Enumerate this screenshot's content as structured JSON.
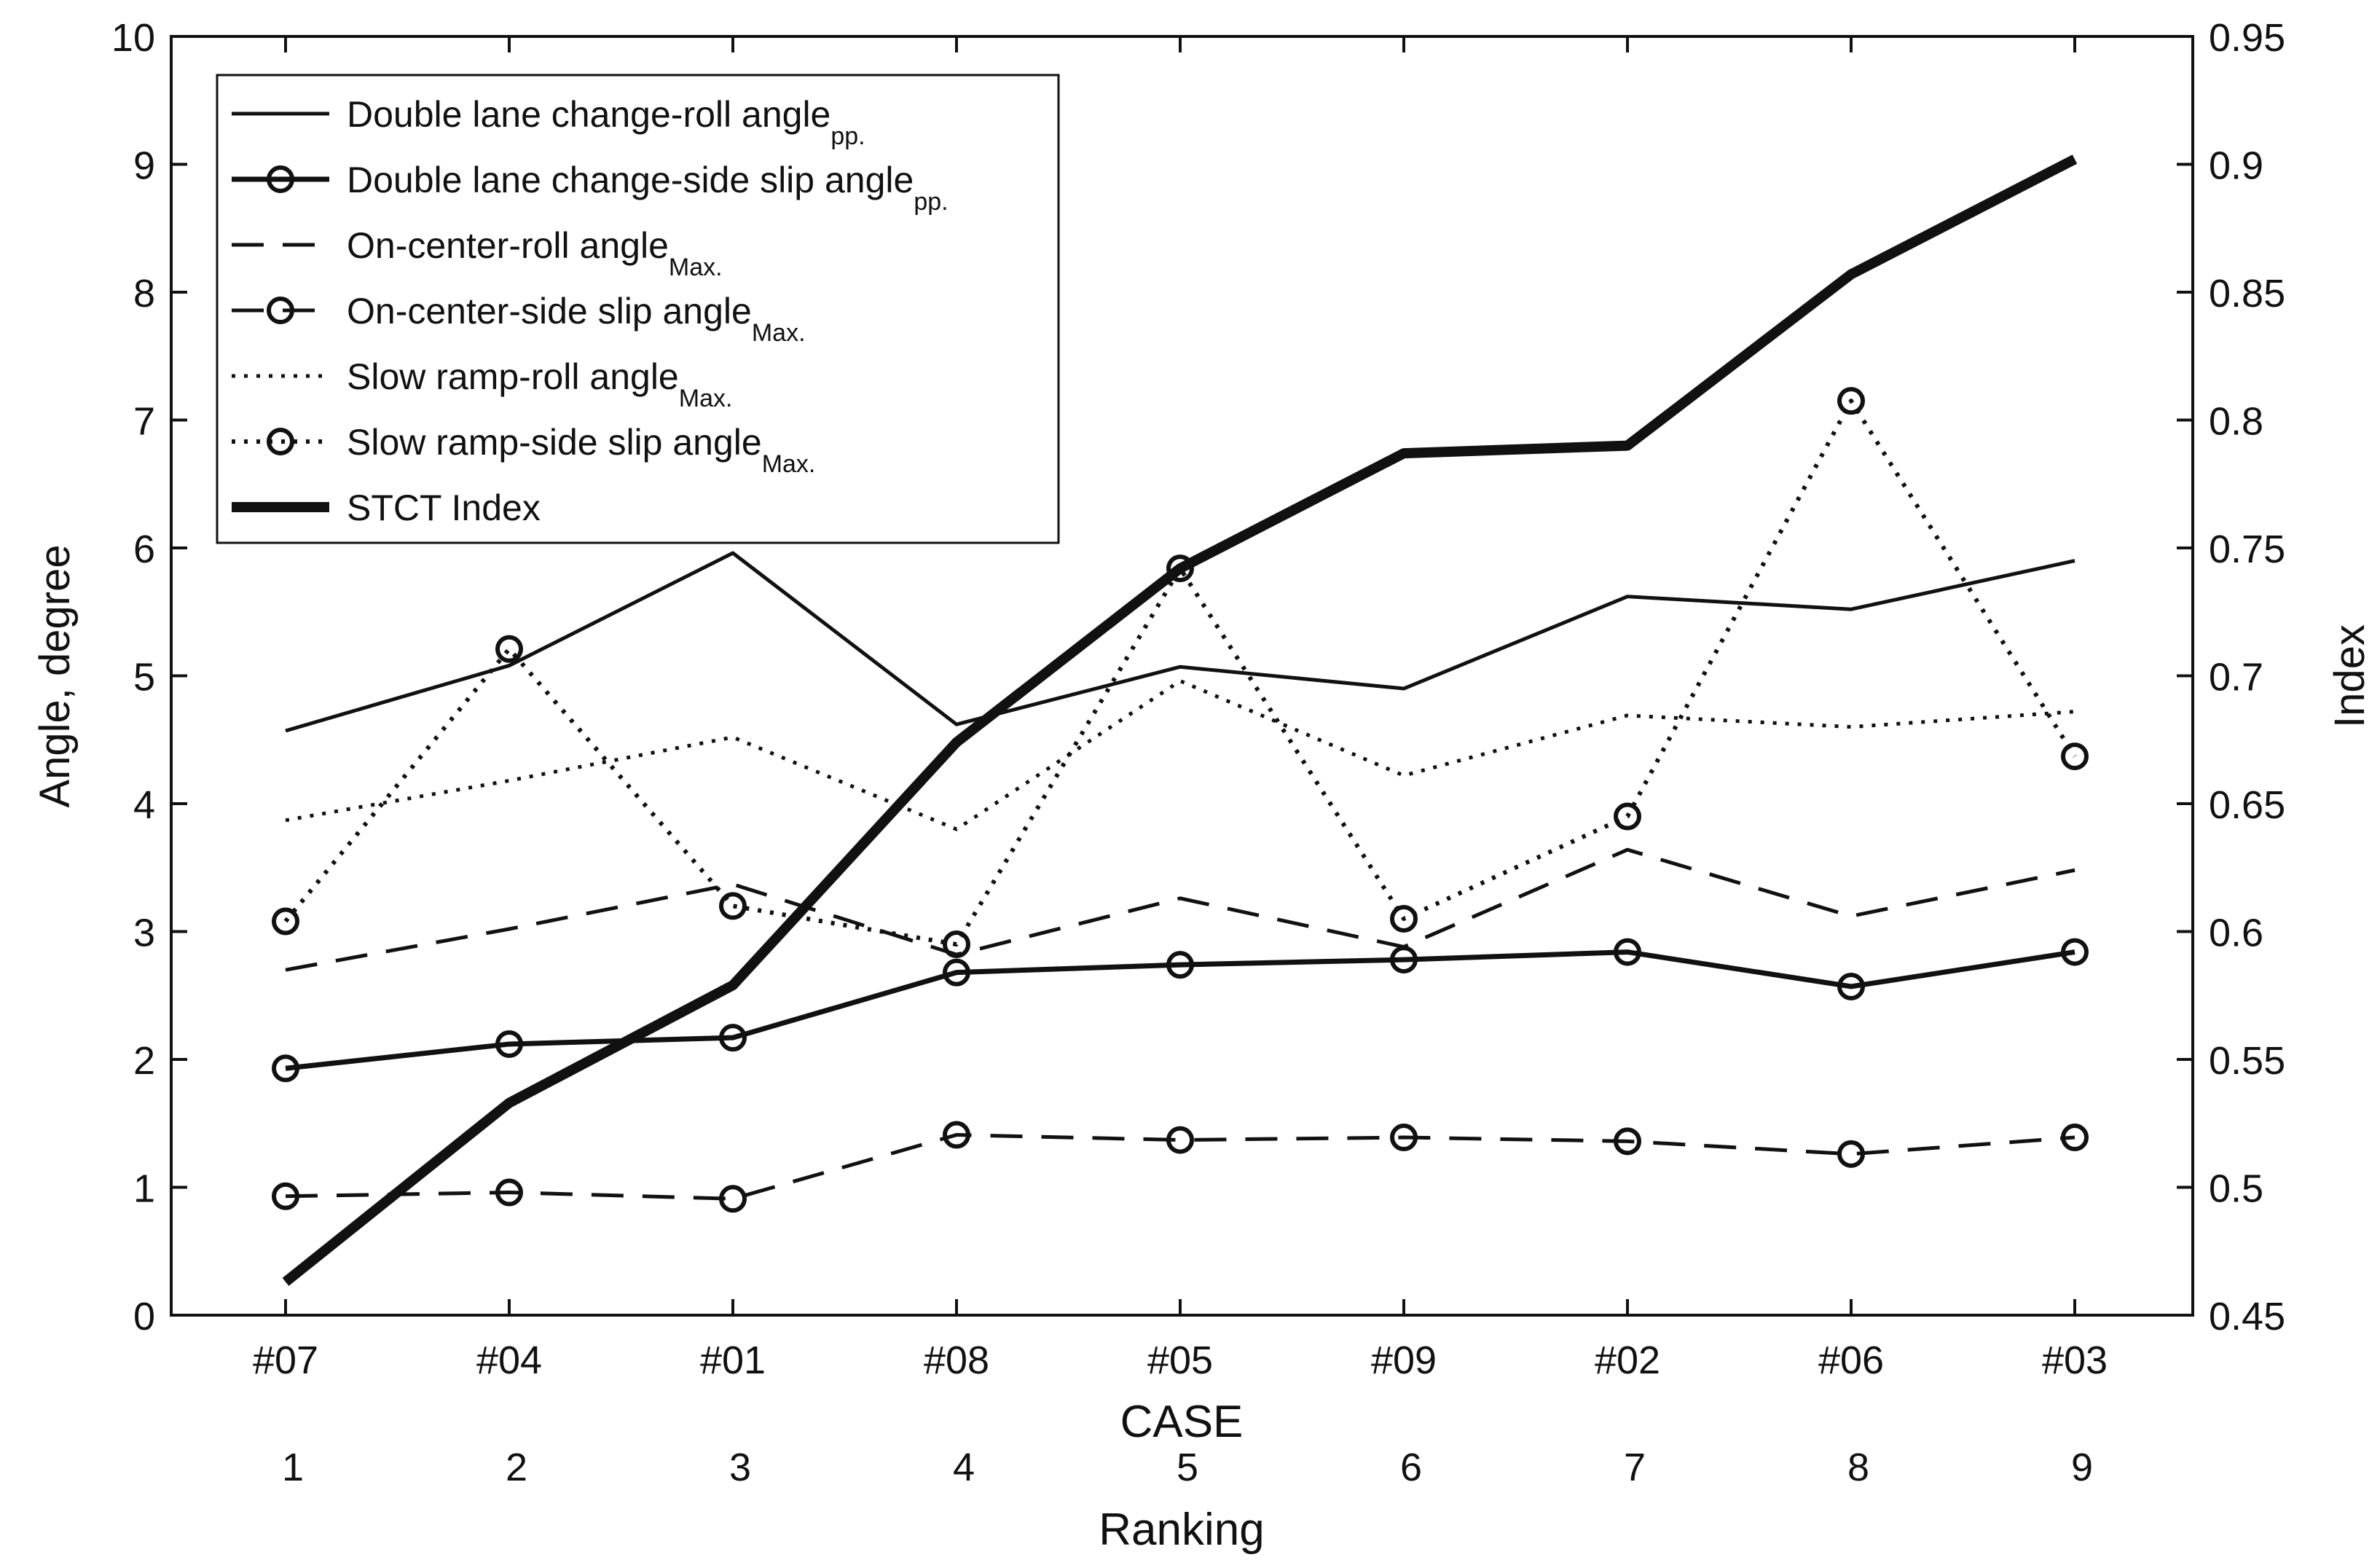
{
  "chart_data": {
    "type": "line",
    "categories": [
      "#07",
      "#04",
      "#01",
      "#08",
      "#05",
      "#09",
      "#02",
      "#06",
      "#03"
    ],
    "ranking": [
      "1",
      "2",
      "3",
      "4",
      "5",
      "6",
      "7",
      "8",
      "9"
    ],
    "xlabel": "CASE",
    "xlabel2": "Ranking",
    "ylabel": "Angle, degree",
    "ylabel_right": "Index",
    "ylim": [
      0,
      10
    ],
    "ylim_right": [
      0.45,
      0.95
    ],
    "yticks": [
      "0",
      "1",
      "2",
      "3",
      "4",
      "5",
      "6",
      "7",
      "8",
      "9",
      "10"
    ],
    "yticks_right": [
      "0.45",
      "0.5",
      "0.55",
      "0.6",
      "0.65",
      "0.7",
      "0.75",
      "0.8",
      "0.85",
      "0.9",
      "0.95"
    ],
    "legend_position": "top-left",
    "series": [
      {
        "name": "Double lane change-roll angle",
        "sub": "pp.",
        "style": "solid-thin",
        "axis": "left",
        "values": [
          4.57,
          5.08,
          5.96,
          4.62,
          5.07,
          4.9,
          5.62,
          5.52,
          5.9
        ]
      },
      {
        "name": "Double lane change-side slip angle",
        "sub": "pp.",
        "style": "solid-marker",
        "axis": "left",
        "values": [
          1.93,
          2.12,
          2.17,
          2.68,
          2.74,
          2.78,
          2.84,
          2.57,
          2.84
        ]
      },
      {
        "name": "On-center-roll angle",
        "sub": "Max.",
        "style": "dashed",
        "axis": "left",
        "values": [
          2.7,
          3.02,
          3.37,
          2.82,
          3.26,
          2.88,
          3.64,
          3.12,
          3.48
        ]
      },
      {
        "name": "On-center-side slip angle",
        "sub": "Max.",
        "style": "dashed-marker",
        "axis": "left",
        "values": [
          0.93,
          0.96,
          0.91,
          1.41,
          1.37,
          1.39,
          1.36,
          1.26,
          1.39
        ]
      },
      {
        "name": "Slow ramp-roll angle",
        "sub": "Max.",
        "style": "dotted",
        "axis": "left",
        "values": [
          3.87,
          4.18,
          4.52,
          3.8,
          4.96,
          4.22,
          4.69,
          4.6,
          4.72
        ]
      },
      {
        "name": "Slow ramp-side slip angle",
        "sub": "Max.",
        "style": "dotted-marker",
        "axis": "left",
        "values": [
          3.08,
          5.21,
          3.2,
          2.9,
          5.84,
          3.1,
          3.9,
          7.15,
          4.37
        ]
      },
      {
        "name": "STCT Index",
        "sub": "",
        "style": "thick",
        "axis": "right",
        "values": [
          0.463,
          0.533,
          0.579,
          0.674,
          0.742,
          0.787,
          0.79,
          0.857,
          0.902
        ]
      }
    ]
  }
}
